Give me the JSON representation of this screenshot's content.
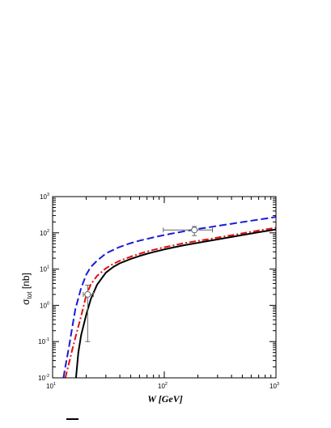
{
  "chart_data": {
    "type": "line",
    "xlabel": "W [GeV]",
    "ylabel": {
      "main": "σ",
      "sub": "tot",
      "unit": " [nb]"
    },
    "xscale": "log",
    "yscale": "log",
    "xlim": [
      10,
      1000
    ],
    "ylim": [
      0.01,
      1000
    ],
    "x_ticks": [
      {
        "base": "10",
        "exp": "1",
        "value": 10
      },
      {
        "base": "10",
        "exp": "2",
        "value": 100
      },
      {
        "base": "10",
        "exp": "3",
        "value": 1000
      }
    ],
    "y_ticks": [
      {
        "base": "10",
        "exp": "-2",
        "value": 0.01
      },
      {
        "base": "10",
        "exp": "-1",
        "value": 0.1
      },
      {
        "base": "10",
        "exp": "0",
        "value": 1
      },
      {
        "base": "10",
        "exp": "1",
        "value": 10
      },
      {
        "base": "10",
        "exp": "2",
        "value": 100
      },
      {
        "base": "10",
        "exp": "3",
        "value": 1000
      }
    ],
    "series": [
      {
        "style": "dashed",
        "color": "#1a1adc",
        "x": [
          12.5,
          13,
          14,
          15,
          16,
          18,
          20,
          22,
          25,
          30,
          35,
          40,
          50,
          60,
          70,
          80,
          100,
          120,
          150,
          200,
          250,
          300,
          400,
          500,
          600,
          700,
          800,
          1000
        ],
        "y": [
          0.01,
          0.02,
          0.07,
          0.25,
          0.8,
          3,
          7,
          11.5,
          17,
          27,
          34,
          41,
          52,
          61,
          68,
          75,
          87,
          97,
          110,
          128,
          142,
          156,
          178,
          198,
          216,
          232,
          247,
          275
        ]
      },
      {
        "style": "dash-dot",
        "color": "#e01010",
        "x": [
          13,
          14,
          15,
          16,
          18,
          20,
          22,
          25,
          30,
          35,
          40,
          50,
          60,
          70,
          80,
          100,
          120,
          150,
          200,
          250,
          300,
          400,
          500,
          600,
          700,
          800,
          1000
        ],
        "y": [
          0.01,
          0.025,
          0.06,
          0.13,
          0.5,
          1.9,
          3.8,
          6.5,
          10.5,
          14,
          17,
          22,
          26.5,
          30.5,
          34,
          40,
          45,
          52,
          60,
          67,
          74,
          86,
          97,
          107,
          116,
          124,
          138
        ]
      },
      {
        "style": "solid",
        "color": "#000000",
        "x": [
          16.2,
          17,
          18,
          20,
          22,
          25,
          30,
          35,
          40,
          50,
          60,
          70,
          80,
          100,
          120,
          150,
          200,
          250,
          300,
          400,
          500,
          600,
          700,
          800,
          1000
        ],
        "y": [
          0.01,
          0.05,
          0.15,
          0.55,
          1.5,
          3.7,
          8,
          11.5,
          14.5,
          19,
          23,
          26.5,
          29.5,
          35,
          39.5,
          45.5,
          53,
          60,
          66,
          77,
          87,
          96,
          104,
          111,
          124
        ]
      }
    ],
    "error_points": [
      {
        "x": 20.6,
        "y": 2.0,
        "x_low": 18.8,
        "x_high": 23.2,
        "y_low": 0.1,
        "y_high": 3.6,
        "marker": "open-circle"
      },
      {
        "x": 186,
        "y": 120,
        "x_low": 98,
        "x_high": 270,
        "y_low": 84,
        "y_high": 150,
        "marker": "open-circle"
      }
    ],
    "grid": false,
    "legend": "none"
  }
}
